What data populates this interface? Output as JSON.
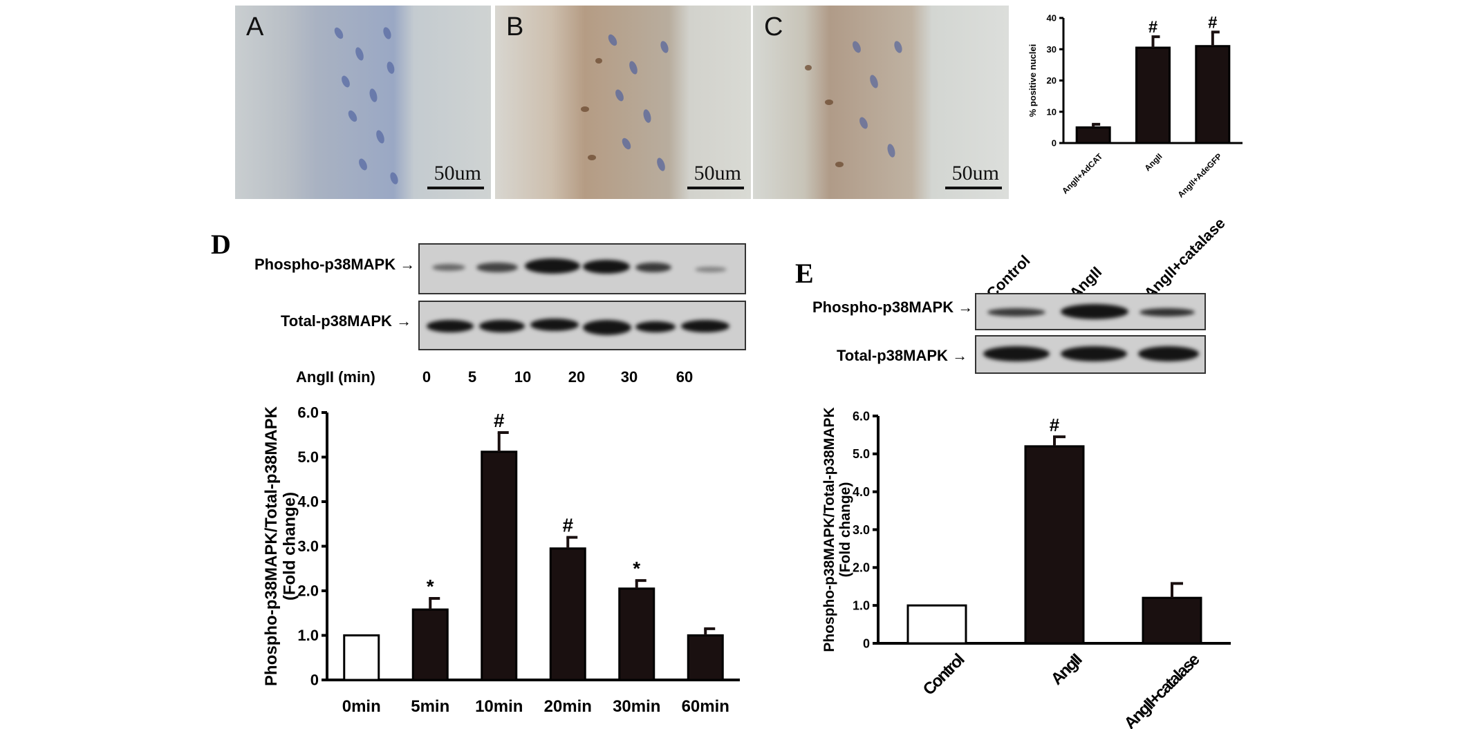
{
  "panels": {
    "A": {
      "label": "A",
      "scale": "50um"
    },
    "B": {
      "label": "B",
      "scale": "50um"
    },
    "C": {
      "label": "C",
      "scale": "50um"
    },
    "D": {
      "label": "D"
    },
    "E": {
      "label": "E"
    }
  },
  "blot_d": {
    "phospho_label": "Phospho-p38MAPK",
    "total_label": "Total-p38MAPK",
    "time_label": "AngII (min)",
    "lanes": [
      "0",
      "5",
      "10",
      "20",
      "30",
      "60"
    ]
  },
  "blot_e": {
    "phospho_label": "Phospho-p38MAPK",
    "total_label": "Total-p38MAPK",
    "lanes": [
      "Control",
      "AngII",
      "AngII+catalase"
    ]
  },
  "chart_data": [
    {
      "id": "chart-positive-nuclei",
      "type": "bar",
      "categories": [
        "AngII+AdCAT",
        "AngII",
        "AngII+AdeGFP"
      ],
      "values": [
        5,
        30.5,
        31
      ],
      "errors": [
        1,
        3.5,
        4.5
      ],
      "annotations": [
        "",
        "#",
        "#"
      ],
      "ylabel": "% positive nuclei",
      "ylim": [
        0,
        40
      ],
      "yticks": [
        "0",
        "10",
        "20",
        "30",
        "40"
      ]
    },
    {
      "id": "chart-time-course",
      "type": "bar",
      "categories": [
        "0min",
        "5min",
        "10min",
        "20min",
        "30min",
        "60min"
      ],
      "values": [
        1.0,
        1.58,
        5.12,
        2.95,
        2.05,
        1.0
      ],
      "errors": [
        0,
        0.25,
        0.43,
        0.25,
        0.18,
        0.15
      ],
      "annotations": [
        "",
        "*",
        "#",
        "#",
        "*",
        ""
      ],
      "ylabel": "Phospho-p38MAPK/Total-p38MAPK",
      "ylabel2": "(Fold change)",
      "ylim": [
        0,
        6
      ],
      "yticks": [
        "0",
        "1.0",
        "2.0",
        "3.0",
        "4.0",
        "5.0",
        "6.0"
      ]
    },
    {
      "id": "chart-catalase",
      "type": "bar",
      "categories": [
        "Control",
        "AngII",
        "AngII+catalase"
      ],
      "values": [
        1.0,
        5.2,
        1.2
      ],
      "errors": [
        0,
        0.25,
        0.38
      ],
      "annotations": [
        "",
        "#",
        ""
      ],
      "ylabel": "Phospho-p38MAPK/Total-p38MAPK",
      "ylabel2": "(Fold change)",
      "ylim": [
        0,
        6
      ],
      "yticks": [
        "0",
        "1.0",
        "2.0",
        "3.0",
        "4.0",
        "5.0",
        "6.0"
      ]
    }
  ]
}
